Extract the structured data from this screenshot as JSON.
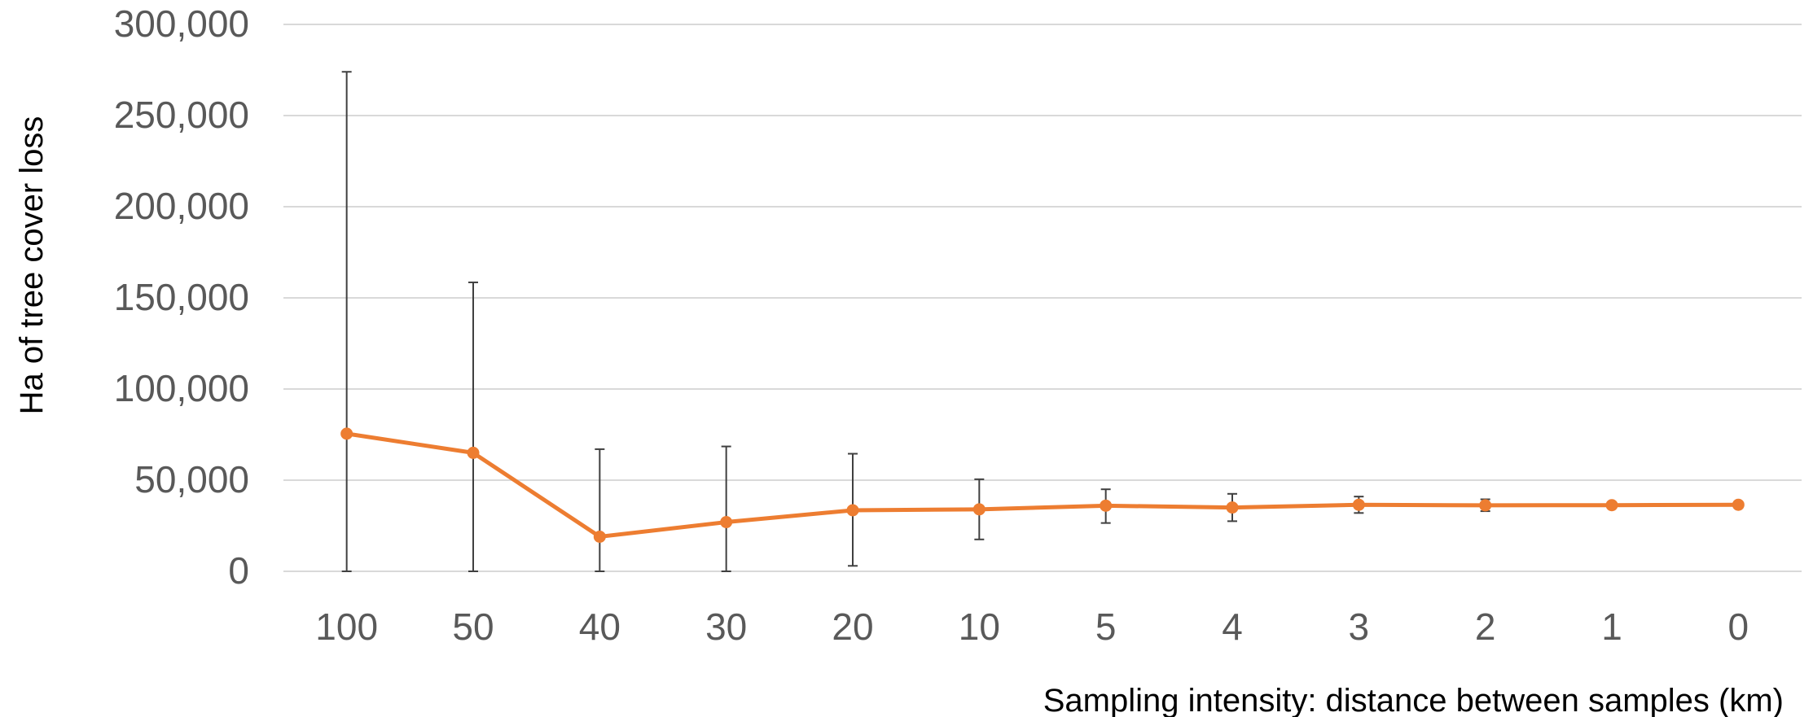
{
  "chart_data": {
    "type": "line",
    "title": "",
    "xlabel": "Sampling intensity: distance between samples (km)",
    "ylabel": "Ha of tree cover loss",
    "categories": [
      "100",
      "50",
      "40",
      "30",
      "20",
      "10",
      "5",
      "4",
      "3",
      "2",
      "1",
      "0"
    ],
    "series": [
      {
        "values": [
          75500,
          65000,
          19000,
          27000,
          33500,
          34000,
          36000,
          35000,
          36500,
          36200,
          36300,
          36500
        ],
        "error_low": [
          0,
          0,
          0,
          0,
          3000,
          17500,
          26500,
          27500,
          32000,
          33000,
          36300,
          36500
        ],
        "error_high": [
          274000,
          158500,
          67000,
          68500,
          64500,
          50500,
          45000,
          42500,
          41000,
          39500,
          36300,
          36500
        ],
        "color": "#ED7D31"
      }
    ],
    "ylim": [
      0,
      300000
    ],
    "yticks": [
      0,
      50000,
      100000,
      150000,
      200000,
      250000,
      300000
    ],
    "ytick_labels": [
      "0",
      "50,000",
      "100,000",
      "150,000",
      "200,000",
      "250,000",
      "300,000"
    ],
    "grid": true,
    "legend": "none",
    "colors": {
      "line": "#ED7D31",
      "error_bar": "#404040",
      "grid": "#D9D9D9",
      "tick_text": "#595959",
      "axis_text": "#000000"
    }
  }
}
